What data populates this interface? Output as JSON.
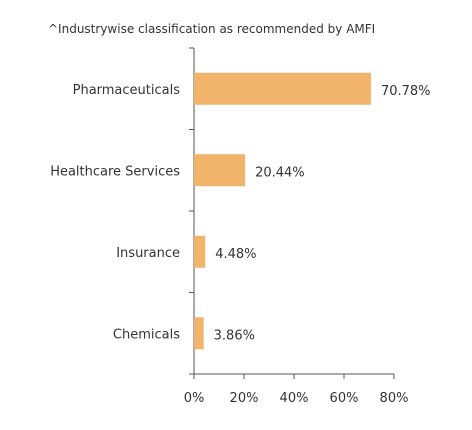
{
  "note": "^Industrywise classification as recommended by AMFI",
  "colors": {
    "bar": "#f2b36b",
    "axis": "#555555",
    "text": "#333333"
  },
  "chart_data": {
    "type": "bar",
    "orientation": "horizontal",
    "categories": [
      "Pharmaceuticals",
      "Healthcare Services",
      "Insurance",
      "Chemicals"
    ],
    "values": [
      70.78,
      20.44,
      4.48,
      3.86
    ],
    "data_labels": [
      "70.78%",
      "20.44%",
      "4.48%",
      "3.86%"
    ],
    "xlim": [
      0,
      80
    ],
    "xticks": [
      0,
      20,
      40,
      60,
      80
    ],
    "xtick_labels": [
      "0%",
      "20%",
      "40%",
      "60%",
      "80%"
    ],
    "grid": false,
    "legend": "none"
  }
}
